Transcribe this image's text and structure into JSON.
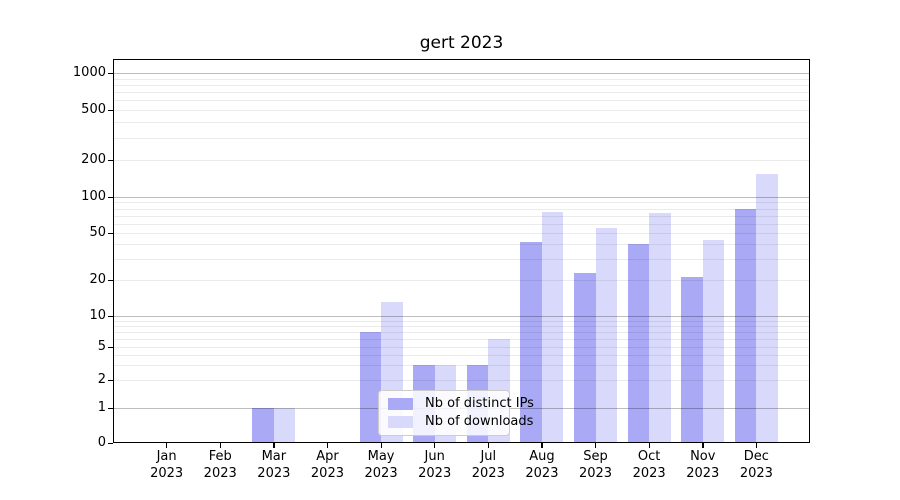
{
  "chart_data": {
    "type": "bar",
    "title": "gert 2023",
    "yscale": "symlog",
    "ylim": [
      0,
      1000
    ],
    "grid": true,
    "legend_position": "lower center",
    "yticks": [
      0,
      1,
      2,
      5,
      10,
      20,
      50,
      100,
      200,
      500,
      1000
    ],
    "ytick_labels": [
      "0",
      "1",
      "2",
      "5",
      "10",
      "20",
      "50",
      "100",
      "200",
      "500",
      "1000"
    ],
    "categories": [
      "Jan 2023",
      "Feb 2023",
      "Mar 2023",
      "Apr 2023",
      "May 2023",
      "Jun 2023",
      "Jul 2023",
      "Aug 2023",
      "Sep 2023",
      "Oct 2023",
      "Nov 2023",
      "Dec 2023"
    ],
    "xtick_labels": [
      [
        "Jan",
        "2023"
      ],
      [
        "Feb",
        "2023"
      ],
      [
        "Mar",
        "2023"
      ],
      [
        "Apr",
        "2023"
      ],
      [
        "May",
        "2023"
      ],
      [
        "Jun",
        "2023"
      ],
      [
        "Jul",
        "2023"
      ],
      [
        "Aug",
        "2023"
      ],
      [
        "Sep",
        "2023"
      ],
      [
        "Oct",
        "2023"
      ],
      [
        "Nov",
        "2023"
      ],
      [
        "Dec",
        "2023"
      ]
    ],
    "series": [
      {
        "name": "Nb of distinct IPs",
        "color": "#a9a9f5",
        "values": [
          0,
          0,
          1,
          0,
          7,
          3,
          3,
          42,
          23,
          40,
          21,
          80
        ]
      },
      {
        "name": "Nb of downloads",
        "color": "#d9d9fb",
        "values": [
          0,
          0,
          1,
          0,
          13,
          3,
          6,
          75,
          55,
          73,
          44,
          155
        ]
      }
    ],
    "colors": {
      "major_grid": "rgba(0,0,0,0.26)",
      "minor_grid": "rgba(0,0,0,0.08)",
      "spine": "#000000",
      "background": "#ffffff"
    }
  }
}
